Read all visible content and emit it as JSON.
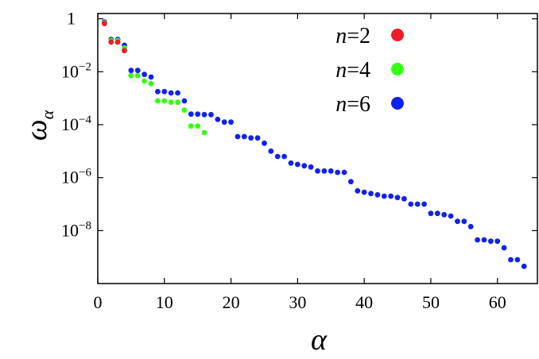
{
  "chart_data": {
    "type": "scatter",
    "xlabel": "α",
    "ylabel": "ω",
    "ylabel_sub": "α",
    "xlim": [
      0,
      66
    ],
    "ylim": [
      -10.0,
      0.2
    ],
    "yscale": "log",
    "xticks": [
      0,
      10,
      20,
      30,
      40,
      50,
      60
    ],
    "yticks": [
      {
        "value": 0,
        "base": "1",
        "exp": ""
      },
      {
        "value": -2,
        "base": "10",
        "exp": "−2"
      },
      {
        "value": -4,
        "base": "10",
        "exp": "−4"
      },
      {
        "value": -6,
        "base": "10",
        "exp": "−6"
      },
      {
        "value": -8,
        "base": "10",
        "exp": "−8"
      }
    ],
    "grid": false,
    "legend_position": "top-right",
    "series": [
      {
        "name": "n=2",
        "name_var": "n",
        "name_rest": "=2",
        "color": "#ee1c24",
        "points": [
          [
            1,
            -0.18
          ],
          [
            2,
            -0.88
          ],
          [
            3,
            -0.88
          ],
          [
            4,
            -1.2
          ]
        ]
      },
      {
        "name": "n=4",
        "name_var": "n",
        "name_rest": "=4",
        "color": "#33ff11",
        "points": [
          [
            1,
            -0.15
          ],
          [
            2,
            -0.82
          ],
          [
            3,
            -0.82
          ],
          [
            4,
            -1.1
          ],
          [
            5,
            -2.15
          ],
          [
            6,
            -2.15
          ],
          [
            7,
            -2.35
          ],
          [
            8,
            -2.45
          ],
          [
            9,
            -3.1
          ],
          [
            10,
            -3.1
          ],
          [
            11,
            -3.15
          ],
          [
            12,
            -3.15
          ],
          [
            13,
            -3.45
          ],
          [
            14,
            -4.05
          ],
          [
            15,
            -4.05
          ],
          [
            16,
            -4.3
          ]
        ]
      },
      {
        "name": "n=6",
        "name_var": "n",
        "name_rest": "=6",
        "color": "#1122ee",
        "points": [
          [
            1,
            -0.12
          ],
          [
            2,
            -0.78
          ],
          [
            3,
            -0.78
          ],
          [
            4,
            -1.0
          ],
          [
            5,
            -1.95
          ],
          [
            6,
            -1.95
          ],
          [
            7,
            -2.1
          ],
          [
            8,
            -2.2
          ],
          [
            9,
            -2.75
          ],
          [
            10,
            -2.75
          ],
          [
            11,
            -2.8
          ],
          [
            12,
            -2.8
          ],
          [
            13,
            -3.1
          ],
          [
            14,
            -3.6
          ],
          [
            15,
            -3.6
          ],
          [
            16,
            -3.62
          ],
          [
            17,
            -3.62
          ],
          [
            18,
            -3.8
          ],
          [
            19,
            -3.9
          ],
          [
            20,
            -3.9
          ],
          [
            21,
            -4.45
          ],
          [
            22,
            -4.45
          ],
          [
            23,
            -4.5
          ],
          [
            24,
            -4.5
          ],
          [
            25,
            -4.7
          ],
          [
            26,
            -5.0
          ],
          [
            27,
            -5.2
          ],
          [
            28,
            -5.2
          ],
          [
            29,
            -5.45
          ],
          [
            30,
            -5.5
          ],
          [
            31,
            -5.55
          ],
          [
            32,
            -5.6
          ],
          [
            33,
            -5.75
          ],
          [
            34,
            -5.75
          ],
          [
            35,
            -5.75
          ],
          [
            36,
            -5.8
          ],
          [
            37,
            -5.8
          ],
          [
            38,
            -6.15
          ],
          [
            39,
            -6.5
          ],
          [
            40,
            -6.55
          ],
          [
            41,
            -6.6
          ],
          [
            42,
            -6.65
          ],
          [
            43,
            -6.7
          ],
          [
            44,
            -6.7
          ],
          [
            45,
            -6.75
          ],
          [
            46,
            -6.8
          ],
          [
            47,
            -7.0
          ],
          [
            48,
            -7.0
          ],
          [
            49,
            -7.0
          ],
          [
            50,
            -7.35
          ],
          [
            51,
            -7.35
          ],
          [
            52,
            -7.4
          ],
          [
            53,
            -7.45
          ],
          [
            54,
            -7.65
          ],
          [
            55,
            -7.65
          ],
          [
            56,
            -7.85
          ],
          [
            57,
            -8.35
          ],
          [
            58,
            -8.35
          ],
          [
            59,
            -8.4
          ],
          [
            60,
            -8.4
          ],
          [
            61,
            -8.65
          ],
          [
            62,
            -9.1
          ],
          [
            63,
            -9.1
          ],
          [
            64,
            -9.35
          ]
        ]
      }
    ]
  }
}
